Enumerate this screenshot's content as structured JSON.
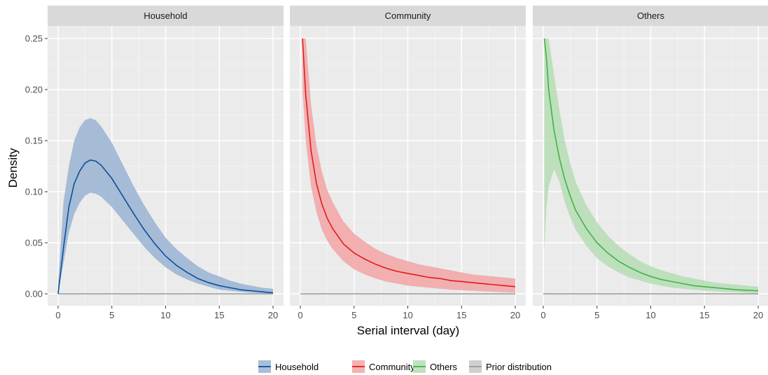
{
  "chart_data": {
    "type": "area",
    "xlabel": "Serial interval (day)",
    "ylabel": "Density",
    "xlim": [
      0,
      20
    ],
    "ylim": [
      0,
      0.25
    ],
    "x_ticks": [
      0,
      5,
      10,
      15,
      20
    ],
    "x_tick_labels": [
      "0",
      "5",
      "10",
      "15",
      "20"
    ],
    "y_ticks": [
      0,
      0.05,
      0.1,
      0.15,
      0.2,
      0.25
    ],
    "y_tick_labels": [
      "0.00",
      "0.05",
      "0.10",
      "0.15",
      "0.20",
      "0.25"
    ],
    "grid": true,
    "legend_position": "bottom",
    "facets": [
      {
        "label": "Household",
        "color": "#08519c",
        "fill": "#9ab3d2",
        "x": [
          0,
          0.5,
          1,
          1.5,
          2,
          2.5,
          3,
          3.5,
          4,
          5,
          6,
          7,
          8,
          9,
          10,
          11,
          12,
          13,
          14,
          15,
          16,
          17,
          18,
          19,
          20
        ],
        "mean": [
          0,
          0.045,
          0.085,
          0.108,
          0.12,
          0.128,
          0.131,
          0.13,
          0.126,
          0.113,
          0.096,
          0.079,
          0.063,
          0.049,
          0.037,
          0.028,
          0.021,
          0.015,
          0.011,
          0.008,
          0.006,
          0.004,
          0.003,
          0.002,
          0.001
        ],
        "lower": [
          0,
          0.03,
          0.06,
          0.078,
          0.089,
          0.096,
          0.099,
          0.098,
          0.095,
          0.085,
          0.072,
          0.059,
          0.046,
          0.035,
          0.026,
          0.019,
          0.014,
          0.01,
          0.007,
          0.004,
          0.003,
          0.002,
          0.001,
          0.0005,
          0
        ],
        "upper": [
          0.01,
          0.09,
          0.125,
          0.15,
          0.163,
          0.17,
          0.172,
          0.17,
          0.164,
          0.148,
          0.127,
          0.106,
          0.087,
          0.07,
          0.055,
          0.044,
          0.035,
          0.027,
          0.021,
          0.017,
          0.013,
          0.01,
          0.008,
          0.006,
          0.005
        ]
      },
      {
        "label": "Community",
        "color": "#e41a1c",
        "fill": "#f2a5a6",
        "x": [
          0.2,
          0.5,
          1,
          1.5,
          2,
          2.5,
          3,
          4,
          5,
          6,
          7,
          8,
          9,
          10,
          11,
          12,
          13,
          14,
          15,
          16,
          17,
          18,
          19,
          20
        ],
        "mean": [
          0.25,
          0.195,
          0.14,
          0.108,
          0.088,
          0.074,
          0.064,
          0.049,
          0.04,
          0.034,
          0.029,
          0.025,
          0.022,
          0.02,
          0.018,
          0.016,
          0.015,
          0.013,
          0.012,
          0.011,
          0.01,
          0.009,
          0.008,
          0.007
        ],
        "lower": [
          0.2,
          0.15,
          0.105,
          0.08,
          0.063,
          0.052,
          0.044,
          0.032,
          0.024,
          0.019,
          0.015,
          0.012,
          0.01,
          0.008,
          0.007,
          0.006,
          0.005,
          0.004,
          0.0035,
          0.003,
          0.0025,
          0.002,
          0.0015,
          0.001
        ],
        "upper": [
          0.25,
          0.25,
          0.185,
          0.145,
          0.12,
          0.102,
          0.09,
          0.071,
          0.059,
          0.051,
          0.044,
          0.039,
          0.035,
          0.032,
          0.029,
          0.027,
          0.025,
          0.023,
          0.021,
          0.019,
          0.018,
          0.017,
          0.016,
          0.015
        ]
      },
      {
        "label": "Others",
        "color": "#41b348",
        "fill": "#b5ddb4",
        "x": [
          0.1,
          0.3,
          0.5,
          1,
          1.5,
          2,
          2.5,
          3,
          4,
          5,
          6,
          7,
          8,
          9,
          10,
          11,
          12,
          13,
          14,
          15,
          16,
          17,
          18,
          19,
          20
        ],
        "mean": [
          0.25,
          0.23,
          0.2,
          0.16,
          0.133,
          0.112,
          0.096,
          0.082,
          0.064,
          0.05,
          0.04,
          0.032,
          0.026,
          0.021,
          0.017,
          0.014,
          0.012,
          0.01,
          0.008,
          0.007,
          0.006,
          0.005,
          0.004,
          0.0035,
          0.003
        ],
        "lower": [
          0.04,
          0.085,
          0.105,
          0.122,
          0.11,
          0.09,
          0.075,
          0.063,
          0.047,
          0.035,
          0.027,
          0.021,
          0.016,
          0.013,
          0.01,
          0.008,
          0.006,
          0.005,
          0.004,
          0.003,
          0.0025,
          0.002,
          0.0015,
          0.001,
          0.0005
        ],
        "upper": [
          0.25,
          0.25,
          0.25,
          0.215,
          0.18,
          0.15,
          0.128,
          0.11,
          0.087,
          0.07,
          0.057,
          0.047,
          0.039,
          0.032,
          0.027,
          0.023,
          0.02,
          0.017,
          0.015,
          0.013,
          0.011,
          0.01,
          0.009,
          0.008,
          0.007
        ]
      }
    ],
    "prior": {
      "label": "Prior distribution",
      "color": "#999999",
      "value": 0
    },
    "legend": [
      {
        "label": "Household",
        "color": "#08519c",
        "fill": "#9ab3d2"
      },
      {
        "label": "Community",
        "color": "#e41a1c",
        "fill": "#f2a5a6"
      },
      {
        "label": "Others",
        "color": "#41b348",
        "fill": "#b5ddb4"
      },
      {
        "label": "Prior distribution",
        "color": "#999999",
        "fill": "#c8c8c8"
      }
    ]
  }
}
